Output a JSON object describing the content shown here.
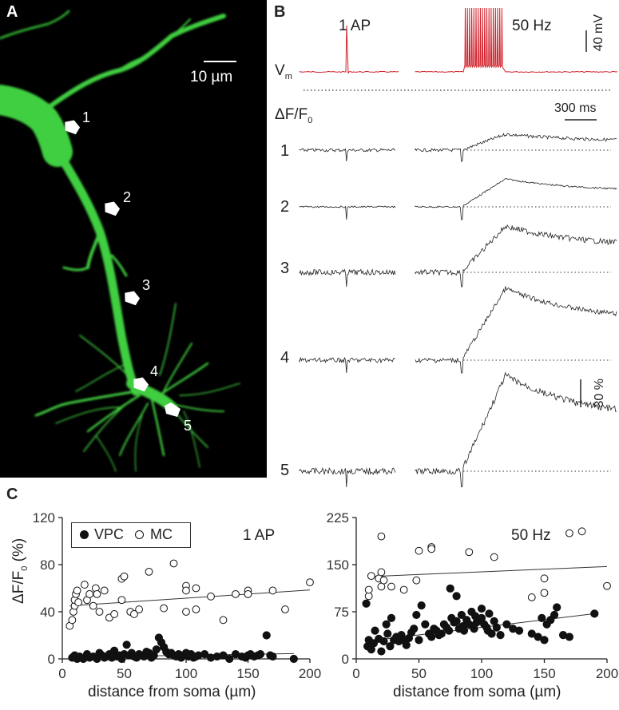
{
  "panel_a": {
    "label": "A",
    "scale_label": "10 µm",
    "sites": [
      "1",
      "2",
      "3",
      "4",
      "5"
    ]
  },
  "panel_b": {
    "label": "B",
    "label_1ap": "1 AP",
    "label_50hz": "50 Hz",
    "scale_mv": "40 mV",
    "vm_label": "V",
    "vm_sub": "m",
    "df_label": "ΔF/F",
    "df_sub": "0",
    "scale_ms": "300 ms",
    "scale_pct": "30 %",
    "trace_labels": [
      "1",
      "2",
      "3",
      "4",
      "5"
    ],
    "trace_color": "#d0202a"
  },
  "panel_c": {
    "label": "C",
    "ylabel": "ΔF/F",
    "ylabel_sub": "0",
    "ylabel_unit": " (%)",
    "legend_vpc": "VPC",
    "legend_mc": "MC",
    "xlabel": "distance from soma (µm)"
  },
  "chart_data": [
    {
      "type": "scatter",
      "title": "1 AP",
      "xlabel": "distance from soma (µm)",
      "ylabel": "ΔF/F0 (%)",
      "xlim": [
        0,
        200
      ],
      "ylim": [
        0,
        120
      ],
      "xticks": [
        0,
        50,
        100,
        150,
        200
      ],
      "yticks": [
        0,
        40,
        80,
        120
      ],
      "legend": "top-left",
      "series": [
        {
          "name": "VPC",
          "marker": "filled",
          "points": [
            [
              8,
              1
            ],
            [
              10,
              3
            ],
            [
              12,
              0
            ],
            [
              14,
              2
            ],
            [
              17,
              -1
            ],
            [
              20,
              4
            ],
            [
              22,
              1
            ],
            [
              25,
              2
            ],
            [
              28,
              0
            ],
            [
              30,
              5
            ],
            [
              32,
              3
            ],
            [
              34,
              1
            ],
            [
              36,
              2
            ],
            [
              38,
              4
            ],
            [
              40,
              1
            ],
            [
              42,
              7
            ],
            [
              44,
              2
            ],
            [
              46,
              3
            ],
            [
              48,
              0
            ],
            [
              50,
              4
            ],
            [
              52,
              12
            ],
            [
              54,
              3
            ],
            [
              56,
              5
            ],
            [
              58,
              2
            ],
            [
              60,
              1
            ],
            [
              62,
              4
            ],
            [
              64,
              3
            ],
            [
              66,
              2
            ],
            [
              68,
              6
            ],
            [
              70,
              5
            ],
            [
              72,
              1
            ],
            [
              74,
              3
            ],
            [
              76,
              8
            ],
            [
              78,
              18
            ],
            [
              80,
              14
            ],
            [
              82,
              10
            ],
            [
              84,
              6
            ],
            [
              86,
              4
            ],
            [
              88,
              5
            ],
            [
              90,
              3
            ],
            [
              92,
              2
            ],
            [
              94,
              4
            ],
            [
              96,
              1
            ],
            [
              98,
              3
            ],
            [
              100,
              5
            ],
            [
              102,
              2
            ],
            [
              104,
              4
            ],
            [
              106,
              1
            ],
            [
              108,
              2
            ],
            [
              110,
              3
            ],
            [
              115,
              4
            ],
            [
              120,
              1
            ],
            [
              125,
              2
            ],
            [
              130,
              3
            ],
            [
              135,
              0
            ],
            [
              140,
              4
            ],
            [
              145,
              2
            ],
            [
              148,
              1
            ],
            [
              150,
              3
            ],
            [
              152,
              4
            ],
            [
              155,
              2
            ],
            [
              158,
              3
            ],
            [
              160,
              4
            ],
            [
              165,
              20
            ],
            [
              168,
              3
            ],
            [
              170,
              2
            ],
            [
              187,
              0
            ]
          ],
          "fit": [
            [
              8,
              1.5
            ],
            [
              187,
              4.5
            ]
          ]
        },
        {
          "name": "MC",
          "marker": "open",
          "points": [
            [
              6,
              28
            ],
            [
              8,
              33
            ],
            [
              9,
              40
            ],
            [
              10,
              45
            ],
            [
              10,
              50
            ],
            [
              11,
              55
            ],
            [
              12,
              58
            ],
            [
              13,
              48
            ],
            [
              18,
              63
            ],
            [
              20,
              50
            ],
            [
              22,
              55
            ],
            [
              25,
              45
            ],
            [
              27,
              60
            ],
            [
              28,
              55
            ],
            [
              30,
              40
            ],
            [
              34,
              58
            ],
            [
              38,
              35
            ],
            [
              42,
              38
            ],
            [
              48,
              68
            ],
            [
              48,
              50
            ],
            [
              50,
              70
            ],
            [
              55,
              40
            ],
            [
              58,
              38
            ],
            [
              62,
              42
            ],
            [
              70,
              74
            ],
            [
              82,
              43
            ],
            [
              90,
              81
            ],
            [
              100,
              40
            ],
            [
              100,
              62
            ],
            [
              100,
              58
            ],
            [
              108,
              60
            ],
            [
              108,
              42
            ],
            [
              120,
              53
            ],
            [
              130,
              33
            ],
            [
              140,
              55
            ],
            [
              150,
              58
            ],
            [
              150,
              55
            ],
            [
              170,
              58
            ],
            [
              180,
              42
            ],
            [
              200,
              65
            ]
          ],
          "fit": [
            [
              6,
              45
            ],
            [
              200,
              58.5
            ]
          ]
        }
      ]
    },
    {
      "type": "scatter",
      "title": "50 Hz",
      "xlabel": "distance from soma (µm)",
      "ylabel": "ΔF/F0 (%)",
      "xlim": [
        0,
        200
      ],
      "ylim": [
        0,
        225
      ],
      "xticks": [
        0,
        50,
        100,
        150,
        200
      ],
      "yticks": [
        0,
        75,
        150,
        225
      ],
      "series": [
        {
          "name": "VPC",
          "marker": "filled",
          "points": [
            [
              8,
              88
            ],
            [
              9,
              20
            ],
            [
              10,
              30
            ],
            [
              12,
              15
            ],
            [
              14,
              25
            ],
            [
              15,
              45
            ],
            [
              18,
              32
            ],
            [
              20,
              12
            ],
            [
              22,
              28
            ],
            [
              24,
              55
            ],
            [
              25,
              40
            ],
            [
              27,
              20
            ],
            [
              28,
              65
            ],
            [
              30,
              30
            ],
            [
              32,
              35
            ],
            [
              34,
              28
            ],
            [
              36,
              38
            ],
            [
              38,
              30
            ],
            [
              40,
              22
            ],
            [
              42,
              33
            ],
            [
              44,
              42
            ],
            [
              46,
              48
            ],
            [
              48,
              70
            ],
            [
              50,
              30
            ],
            [
              52,
              85
            ],
            [
              55,
              55
            ],
            [
              58,
              40
            ],
            [
              60,
              35
            ],
            [
              62,
              48
            ],
            [
              64,
              45
            ],
            [
              66,
              38
            ],
            [
              68,
              40
            ],
            [
              70,
              55
            ],
            [
              72,
              50
            ],
            [
              74,
              45
            ],
            [
              75,
              112
            ],
            [
              76,
              65
            ],
            [
              78,
              58
            ],
            [
              80,
              60
            ],
            [
              80,
              100
            ],
            [
              82,
              48
            ],
            [
              84,
              70
            ],
            [
              85,
              52
            ],
            [
              86,
              45
            ],
            [
              88,
              62
            ],
            [
              90,
              55
            ],
            [
              92,
              75
            ],
            [
              94,
              48
            ],
            [
              95,
              68
            ],
            [
              96,
              58
            ],
            [
              98,
              62
            ],
            [
              100,
              80
            ],
            [
              100,
              65
            ],
            [
              102,
              55
            ],
            [
              104,
              50
            ],
            [
              105,
              45
            ],
            [
              106,
              72
            ],
            [
              108,
              40
            ],
            [
              110,
              60
            ],
            [
              112,
              50
            ],
            [
              115,
              38
            ],
            [
              120,
              55
            ],
            [
              125,
              48
            ],
            [
              130,
              45
            ],
            [
              140,
              40
            ],
            [
              145,
              35
            ],
            [
              148,
              65
            ],
            [
              150,
              30
            ],
            [
              152,
              55
            ],
            [
              155,
              62
            ],
            [
              158,
              70
            ],
            [
              160,
              82
            ],
            [
              165,
              38
            ],
            [
              170,
              35
            ],
            [
              190,
              72
            ]
          ],
          "fit": [
            [
              8,
              28
            ],
            [
              190,
              72
            ]
          ]
        },
        {
          "name": "MC",
          "marker": "open",
          "points": [
            [
              10,
              100
            ],
            [
              10,
              110
            ],
            [
              12,
              132
            ],
            [
              18,
              128
            ],
            [
              20,
              115
            ],
            [
              20,
              138
            ],
            [
              22,
              125
            ],
            [
              20,
              195
            ],
            [
              28,
              115
            ],
            [
              38,
              110
            ],
            [
              48,
              125
            ],
            [
              50,
              172
            ],
            [
              60,
              178
            ],
            [
              60,
              175
            ],
            [
              90,
              170
            ],
            [
              110,
              162
            ],
            [
              140,
              98
            ],
            [
              150,
              105
            ],
            [
              150,
              128
            ],
            [
              170,
              200
            ],
            [
              180,
              203
            ],
            [
              200,
              116
            ]
          ],
          "fit": [
            [
              10,
              131
            ],
            [
              200,
              147
            ]
          ]
        }
      ]
    }
  ]
}
